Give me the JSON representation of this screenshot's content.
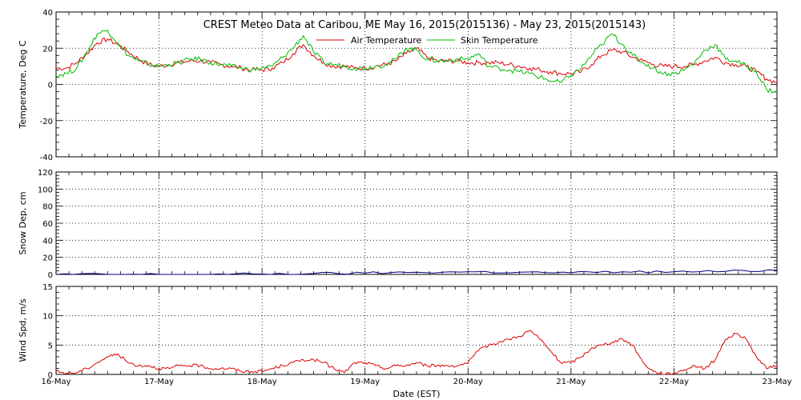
{
  "title": "CREST Meteo Data at Caribou, ME   May 16, 2015(2015136) - May 23, 2015(2015143)",
  "xlabel": "Date (EST)",
  "colors": {
    "air_temperature": "#dd0000",
    "skin_temperature": "#00bb00",
    "snow_depth": "#000080",
    "wind_speed": "#dd0000",
    "grid": "#000000",
    "frame": "#000000"
  },
  "chart_data": [
    {
      "type": "line",
      "ylabel": "Temperature, Deg C",
      "ylim": [
        -40,
        40
      ],
      "yticks": [
        -40,
        -20,
        0,
        20,
        40
      ],
      "xlim": [
        0,
        7
      ],
      "x_ticklabels": [
        "16-May",
        "17-May",
        "18-May",
        "19-May",
        "20-May",
        "21-May",
        "22-May",
        "23-May"
      ],
      "grid": true,
      "legend": "top-center",
      "series": [
        {
          "name": "Air Temperature",
          "color": "#dd0000",
          "x": [
            0,
            0.1,
            0.2,
            0.3,
            0.4,
            0.5,
            0.6,
            0.7,
            0.8,
            0.9,
            1.0,
            1.1,
            1.2,
            1.3,
            1.4,
            1.5,
            1.6,
            1.7,
            1.8,
            1.9,
            2.0,
            2.1,
            2.2,
            2.3,
            2.4,
            2.5,
            2.6,
            2.7,
            2.8,
            2.9,
            3.0,
            3.1,
            3.2,
            3.3,
            3.4,
            3.5,
            3.6,
            3.7,
            3.8,
            3.9,
            4.0,
            4.1,
            4.2,
            4.3,
            4.4,
            4.5,
            4.6,
            4.7,
            4.8,
            4.9,
            5.0,
            5.1,
            5.2,
            5.3,
            5.4,
            5.5,
            5.6,
            5.7,
            5.8,
            5.9,
            6.0,
            6.1,
            6.2,
            6.3,
            6.4,
            6.5,
            6.6,
            6.7,
            6.8,
            6.9,
            7.0
          ],
          "values": [
            9,
            9,
            12,
            17,
            23,
            25,
            22,
            18,
            14,
            11,
            10,
            11,
            12,
            13,
            13,
            12,
            11,
            10,
            9,
            8,
            8,
            9,
            12,
            17,
            22,
            16,
            12,
            10,
            10,
            9,
            9,
            10,
            11,
            13,
            17,
            20,
            15,
            13,
            13,
            13,
            12,
            12,
            12,
            12,
            11,
            10,
            9,
            8,
            7,
            6,
            6,
            7,
            11,
            16,
            19,
            18,
            15,
            13,
            11,
            10,
            10,
            10,
            11,
            13,
            15,
            12,
            11,
            10,
            7,
            3,
            1
          ]
        },
        {
          "name": "Skin Temperature",
          "color": "#00bb00",
          "x": [
            0,
            0.1,
            0.2,
            0.3,
            0.4,
            0.5,
            0.6,
            0.7,
            0.8,
            0.9,
            1.0,
            1.1,
            1.2,
            1.3,
            1.4,
            1.5,
            1.6,
            1.7,
            1.8,
            1.9,
            2.0,
            2.1,
            2.2,
            2.3,
            2.4,
            2.5,
            2.6,
            2.7,
            2.8,
            2.9,
            3.0,
            3.1,
            3.2,
            3.3,
            3.4,
            3.5,
            3.6,
            3.7,
            3.8,
            3.9,
            4.0,
            4.1,
            4.2,
            4.3,
            4.4,
            4.5,
            4.6,
            4.7,
            4.8,
            4.9,
            5.0,
            5.1,
            5.2,
            5.3,
            5.4,
            5.5,
            5.6,
            5.7,
            5.8,
            5.9,
            6.0,
            6.1,
            6.2,
            6.3,
            6.4,
            6.5,
            6.6,
            6.7,
            6.8,
            6.9,
            7.0
          ],
          "values": [
            5,
            6,
            9,
            18,
            28,
            30,
            23,
            16,
            13,
            11,
            10,
            11,
            12,
            14,
            14,
            12,
            11,
            10,
            9,
            8,
            9,
            10,
            15,
            20,
            27,
            18,
            12,
            11,
            10,
            9,
            9,
            10,
            11,
            14,
            20,
            19,
            14,
            13,
            13,
            14,
            14,
            17,
            10,
            9,
            8,
            7,
            6,
            4,
            2,
            1,
            5,
            9,
            16,
            22,
            28,
            22,
            16,
            12,
            9,
            6,
            6,
            8,
            12,
            19,
            22,
            14,
            13,
            10,
            7,
            -3,
            -4
          ]
        }
      ]
    },
    {
      "type": "line",
      "ylabel": "Snow Dep, cm",
      "ylim": [
        0,
        120
      ],
      "yticks": [
        0,
        20,
        40,
        60,
        80,
        100,
        120
      ],
      "xlim": [
        0,
        7
      ],
      "x_ticklabels": [
        "16-May",
        "17-May",
        "18-May",
        "19-May",
        "20-May",
        "21-May",
        "22-May",
        "23-May"
      ],
      "grid": true,
      "series": [
        {
          "color": "#000080",
          "x": [
            0,
            0.5,
            1.0,
            1.5,
            2.0,
            2.5,
            3.0,
            3.5,
            4.0,
            4.5,
            5.0,
            5.5,
            6.0,
            6.5,
            7.0
          ],
          "values": [
            0,
            0,
            0,
            0,
            0.5,
            1,
            1.5,
            2.5,
            3,
            2.5,
            2,
            3,
            3,
            3.5,
            5
          ]
        }
      ]
    },
    {
      "type": "line",
      "ylabel": "Wind Spd, m/s",
      "ylim": [
        0,
        15
      ],
      "yticks": [
        0,
        5,
        10,
        15
      ],
      "xlim": [
        0,
        7
      ],
      "x_ticklabels": [
        "16-May",
        "17-May",
        "18-May",
        "19-May",
        "20-May",
        "21-May",
        "22-May",
        "23-May"
      ],
      "grid": true,
      "series": [
        {
          "color": "#dd0000",
          "x": [
            0,
            0.1,
            0.2,
            0.3,
            0.4,
            0.5,
            0.6,
            0.7,
            0.8,
            0.9,
            1.0,
            1.1,
            1.2,
            1.3,
            1.4,
            1.5,
            1.6,
            1.7,
            1.8,
            1.9,
            2.0,
            2.1,
            2.2,
            2.3,
            2.4,
            2.5,
            2.6,
            2.7,
            2.8,
            2.9,
            3.0,
            3.1,
            3.2,
            3.3,
            3.4,
            3.5,
            3.6,
            3.7,
            3.8,
            3.9,
            4.0,
            4.1,
            4.2,
            4.3,
            4.4,
            4.5,
            4.6,
            4.7,
            4.8,
            4.9,
            5.0,
            5.1,
            5.2,
            5.3,
            5.4,
            5.5,
            5.6,
            5.7,
            5.8,
            5.9,
            6.0,
            6.1,
            6.2,
            6.3,
            6.4,
            6.5,
            6.6,
            6.7,
            6.8,
            6.9,
            7.0
          ],
          "values": [
            0.5,
            0.2,
            0.3,
            1,
            2,
            3,
            3.5,
            2,
            1.5,
            1.5,
            1,
            1,
            1.5,
            1.5,
            1.5,
            1,
            1,
            1,
            0.5,
            0.5,
            0.5,
            1,
            1.5,
            2,
            2.5,
            2.5,
            2,
            1,
            0.3,
            2,
            2,
            1.5,
            1,
            1.5,
            1.5,
            2,
            1.5,
            1.5,
            1.5,
            1.5,
            2,
            4,
            5,
            5.5,
            6,
            6.5,
            7.5,
            6,
            4,
            2,
            2,
            3,
            4.5,
            5,
            5.5,
            6,
            5,
            2,
            0.5,
            0,
            0.2,
            0.8,
            1.5,
            1,
            2.5,
            6,
            7,
            6,
            3,
            1,
            1.5
          ]
        }
      ]
    }
  ]
}
